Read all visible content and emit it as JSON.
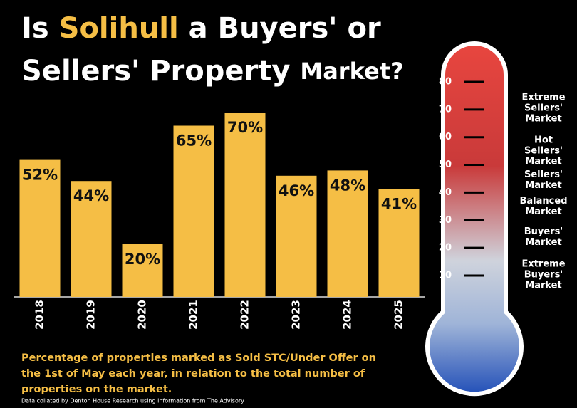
{
  "title": {
    "line1": [
      "Is",
      "Solihull",
      "a Buyers' or"
    ],
    "line2": [
      "Sellers' Property",
      "Market?"
    ]
  },
  "chart_data": {
    "type": "bar",
    "categories": [
      "2018",
      "2019",
      "2020",
      "2021",
      "2022",
      "2023",
      "2024",
      "2025"
    ],
    "values": [
      52,
      44,
      20,
      65,
      70,
      46,
      48,
      41
    ],
    "value_labels": [
      "52%",
      "44%",
      "20%",
      "65%",
      "70%",
      "46%",
      "48%",
      "41%"
    ],
    "color": "#f5be45"
  },
  "thermometer": {
    "ticks": [
      10,
      20,
      30,
      40,
      50,
      60,
      70,
      80
    ],
    "zones": [
      [
        "Extreme",
        "Sellers'",
        "Market"
      ],
      [
        "Hot",
        "Sellers'",
        "Market"
      ],
      [
        "Sellers'",
        "Market"
      ],
      [
        "Balanced",
        "Market"
      ],
      [
        "Buyers'",
        "Market"
      ],
      [
        "Extreme",
        "Buyers'",
        "Market"
      ]
    ]
  },
  "footnote": {
    "lines": [
      "Percentage of properties marked as Sold STC/Under Offer on",
      "the 1st of May each year, in relation to the total number of",
      "properties on the market."
    ],
    "source": "Data collated by Denton House Research using information from The Advisory"
  }
}
